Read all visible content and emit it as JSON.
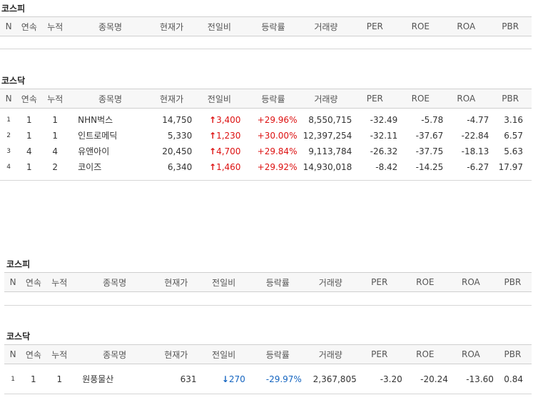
{
  "headers": [
    "N",
    "연속",
    "누적",
    "종목명",
    "현재가",
    "전일비",
    "등락률",
    "거래량",
    "PER",
    "ROE",
    "ROA",
    "PBR"
  ],
  "block1": {
    "kospi": {
      "title": "코스피",
      "rows": []
    },
    "kosdaq": {
      "title": "코스닥",
      "rows": [
        {
          "n": "1",
          "streak": "1",
          "total": "1",
          "name": "NHN벅스",
          "price": "14,750",
          "dir": "up",
          "diff": "3,400",
          "rate": "+29.96%",
          "volume": "8,550,715",
          "per": "-32.49",
          "roe": "-5.78",
          "roa": "-4.77",
          "pbr": "3.16"
        },
        {
          "n": "2",
          "streak": "1",
          "total": "1",
          "name": "인트로메딕",
          "price": "5,330",
          "dir": "up",
          "diff": "1,230",
          "rate": "+30.00%",
          "volume": "12,397,254",
          "per": "-32.11",
          "roe": "-37.67",
          "roa": "-22.84",
          "pbr": "6.57"
        },
        {
          "n": "3",
          "streak": "4",
          "total": "4",
          "name": "유앤아이",
          "price": "20,450",
          "dir": "up",
          "diff": "4,700",
          "rate": "+29.84%",
          "volume": "9,113,784",
          "per": "-26.32",
          "roe": "-37.75",
          "roa": "-18.13",
          "pbr": "5.63"
        },
        {
          "n": "4",
          "streak": "1",
          "total": "2",
          "name": "코이즈",
          "price": "6,340",
          "dir": "up",
          "diff": "1,460",
          "rate": "+29.92%",
          "volume": "14,930,018",
          "per": "-8.42",
          "roe": "-14.25",
          "roa": "-6.27",
          "pbr": "17.97"
        }
      ]
    }
  },
  "block2": {
    "kospi": {
      "title": "코스피",
      "rows": []
    },
    "kosdaq": {
      "title": "코스닥",
      "rows": [
        {
          "n": "1",
          "streak": "1",
          "total": "1",
          "name": "원풍물산",
          "price": "631",
          "dir": "down",
          "diff": "270",
          "rate": "-29.97%",
          "volume": "2,367,805",
          "per": "-3.20",
          "roe": "-20.24",
          "roa": "-13.60",
          "pbr": "0.84"
        }
      ]
    }
  },
  "icons": {
    "up": "red-up-arrow-icon",
    "down": "blue-down-arrow-icon"
  },
  "colors": {
    "up": "#dd1111",
    "down": "#1565c0"
  }
}
